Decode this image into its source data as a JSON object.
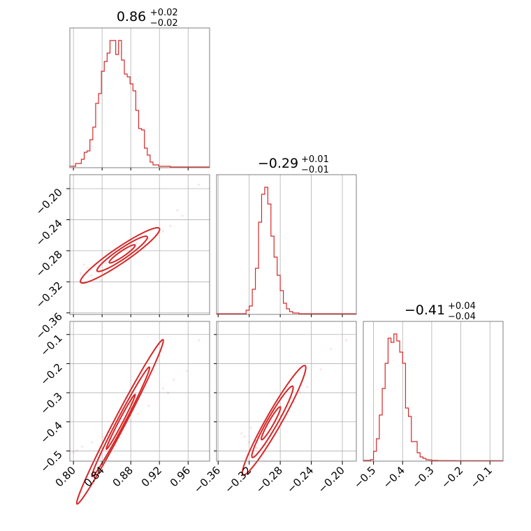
{
  "chart_data": {
    "type": "corner",
    "color": "#d62728",
    "parameters": [
      {
        "title": {
          "median": "0.86",
          "plus": "+0.02",
          "minus": "−0.02"
        },
        "range": [
          0.795,
          0.99
        ],
        "ticks": [
          0.8,
          0.84,
          0.88,
          0.92,
          0.96
        ],
        "tick_labels": [
          "0.80",
          "0.84",
          "0.88",
          "0.92",
          "0.96"
        ],
        "hist": {
          "edges": [
            0.795,
            0.803,
            0.811,
            0.815,
            0.819,
            0.823,
            0.827,
            0.831,
            0.835,
            0.839,
            0.843,
            0.847,
            0.851,
            0.855,
            0.859,
            0.863,
            0.867,
            0.871,
            0.875,
            0.879,
            0.883,
            0.887,
            0.891,
            0.895,
            0.899,
            0.903,
            0.907,
            0.911,
            0.919,
            0.935,
            0.99
          ],
          "counts": [
            0.01,
            0.03,
            0.06,
            0.11,
            0.12,
            0.2,
            0.29,
            0.46,
            0.53,
            0.69,
            0.76,
            0.82,
            0.91,
            0.91,
            0.81,
            0.91,
            0.77,
            0.67,
            0.65,
            0.6,
            0.55,
            0.41,
            0.28,
            0.27,
            0.14,
            0.09,
            0.04,
            0.02,
            0.01,
            0.005
          ]
        }
      },
      {
        "title": {
          "median": "−0.29",
          "plus": "+0.01",
          "minus": "−0.01"
        },
        "range": [
          -0.362,
          -0.182
        ],
        "ticks": [
          -0.36,
          -0.32,
          -0.28,
          -0.24,
          -0.2
        ],
        "tick_labels": [
          "−0.36",
          "−0.32",
          "−0.28",
          "−0.24",
          "−0.20"
        ],
        "hist": {
          "edges": [
            -0.362,
            -0.324,
            -0.32,
            -0.316,
            -0.312,
            -0.308,
            -0.304,
            -0.3,
            -0.296,
            -0.292,
            -0.288,
            -0.284,
            -0.28,
            -0.276,
            -0.272,
            -0.268,
            -0.264,
            -0.256,
            -0.182
          ],
          "counts": [
            0.005,
            0.03,
            0.06,
            0.18,
            0.33,
            0.66,
            0.86,
            0.91,
            0.79,
            0.56,
            0.41,
            0.28,
            0.17,
            0.08,
            0.04,
            0.02,
            0.01,
            0.005
          ]
        }
      },
      {
        "title": {
          "median": "−0.41",
          "plus": "+0.04",
          "minus": "−0.04"
        },
        "range": [
          -0.535,
          -0.055
        ],
        "ticks": [
          -0.5,
          -0.4,
          -0.3,
          -0.2,
          -0.1
        ],
        "tick_labels": [
          "−0.5",
          "−0.4",
          "−0.3",
          "−0.2",
          "−0.1"
        ],
        "hist": {
          "edges": [
            -0.535,
            -0.51,
            -0.5,
            -0.49,
            -0.48,
            -0.47,
            -0.46,
            -0.45,
            -0.44,
            -0.43,
            -0.42,
            -0.41,
            -0.4,
            -0.39,
            -0.38,
            -0.37,
            -0.36,
            -0.35,
            -0.34,
            -0.33,
            -0.32,
            -0.31,
            -0.3,
            -0.28,
            -0.22,
            -0.055
          ],
          "counts": [
            0.005,
            0.01,
            0.07,
            0.16,
            0.33,
            0.52,
            0.7,
            0.88,
            0.85,
            0.91,
            0.86,
            0.78,
            0.7,
            0.38,
            0.32,
            0.14,
            0.14,
            0.06,
            0.03,
            0.02,
            0.01,
            0.008,
            0.005,
            0.004,
            0.003
          ]
        }
      }
    ],
    "pairs": [
      {
        "x_param": 0,
        "y_param": 1,
        "contours": [
          {
            "center": [
              0.865,
              -0.286
            ],
            "slope_units": 0.63,
            "half_length": 0.055,
            "half_width": 0.0045
          },
          {
            "center": [
              0.868,
              -0.284
            ],
            "slope_units": 0.63,
            "half_length": 0.035,
            "half_width": 0.003
          },
          {
            "center": [
              0.868,
              -0.284
            ],
            "slope_units": 0.63,
            "half_length": 0.018,
            "half_width": 0.0016
          }
        ],
        "scatter": [
          [
            0.82,
            -0.302
          ],
          [
            0.815,
            -0.298
          ],
          [
            0.83,
            -0.3
          ],
          [
            0.84,
            -0.308
          ],
          [
            0.835,
            -0.305
          ],
          [
            0.905,
            -0.265
          ],
          [
            0.915,
            -0.26
          ],
          [
            0.935,
            -0.248
          ],
          [
            0.945,
            -0.228
          ],
          [
            0.975,
            -0.195
          ],
          [
            0.952,
            -0.235
          ],
          [
            0.925,
            -0.255
          ],
          [
            0.888,
            -0.27
          ],
          [
            0.845,
            -0.296
          ],
          [
            0.825,
            -0.312
          ],
          [
            0.838,
            -0.318
          ],
          [
            0.81,
            -0.309
          ],
          [
            0.86,
            -0.292
          ],
          [
            0.9,
            -0.272
          ]
        ]
      },
      {
        "x_param": 0,
        "y_param": 2,
        "contours": [
          {
            "center": [
              0.865,
              -0.4
            ],
            "slope_units": 4.7,
            "half_length": 0.06,
            "half_width": 0.009
          },
          {
            "center": [
              0.866,
              -0.4
            ],
            "slope_units": 4.7,
            "half_length": 0.04,
            "half_width": 0.006
          },
          {
            "center": [
              0.866,
              -0.4
            ],
            "slope_units": 4.7,
            "half_length": 0.02,
            "half_width": 0.003
          }
        ],
        "scatter": [
          [
            0.8,
            -0.505
          ],
          [
            0.805,
            -0.498
          ],
          [
            0.812,
            -0.485
          ],
          [
            0.925,
            -0.285
          ],
          [
            0.94,
            -0.255
          ],
          [
            0.958,
            -0.225
          ],
          [
            0.975,
            -0.12
          ],
          [
            0.932,
            -0.3
          ],
          [
            0.842,
            -0.452
          ],
          [
            0.826,
            -0.47
          ],
          [
            0.89,
            -0.372
          ],
          [
            0.905,
            -0.345
          ]
        ]
      },
      {
        "x_param": 1,
        "y_param": 2,
        "contours": [
          {
            "center": [
              -0.288,
              -0.395
            ],
            "slope_units": 4.7,
            "half_length": 0.04,
            "half_width": 0.012
          },
          {
            "center": [
              -0.29,
              -0.4
            ],
            "slope_units": 4.7,
            "half_length": 0.026,
            "half_width": 0.008
          },
          {
            "center": [
              -0.292,
              -0.405
            ],
            "slope_units": 4.7,
            "half_length": 0.012,
            "half_width": 0.004
          }
        ],
        "scatter": [
          [
            -0.32,
            -0.47
          ],
          [
            -0.312,
            -0.465
          ],
          [
            -0.326,
            -0.45
          ],
          [
            -0.3,
            -0.48
          ],
          [
            -0.255,
            -0.3
          ],
          [
            -0.245,
            -0.28
          ],
          [
            -0.228,
            -0.22
          ],
          [
            -0.215,
            -0.15
          ],
          [
            -0.195,
            -0.12
          ],
          [
            -0.318,
            -0.42
          ],
          [
            -0.305,
            -0.455
          ],
          [
            -0.262,
            -0.33
          ],
          [
            -0.31,
            -0.49
          ],
          [
            -0.33,
            -0.44
          ]
        ]
      }
    ]
  }
}
